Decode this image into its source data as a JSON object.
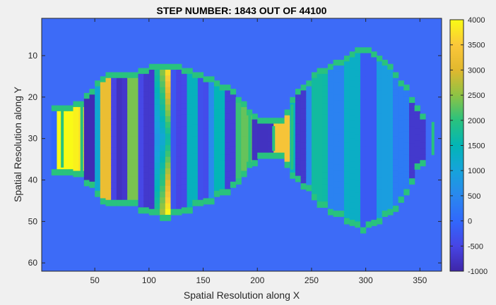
{
  "chart_data": {
    "type": "heatmap",
    "title": "STEP NUMBER: 1843 OUT OF 44100",
    "xlabel": "Spatial Resolution along X",
    "ylabel": "Spatial Resolution along Y",
    "xlim": [
      1,
      370
    ],
    "ylim": [
      1,
      62
    ],
    "y_direction": "reversed",
    "xticks": [
      50,
      100,
      150,
      200,
      250,
      300,
      350
    ],
    "yticks": [
      10,
      20,
      30,
      40,
      50,
      60
    ],
    "colormap": "parula",
    "clim": [
      -1000,
      4000
    ],
    "colorbar_ticks": [
      -1000,
      -500,
      0,
      500,
      1000,
      1500,
      2000,
      2500,
      3000,
      3500,
      4000
    ],
    "colorbar_ticks_display": [
      "-1000",
      "-500",
      "0",
      "500",
      "1000",
      "1500",
      "2000",
      "2500",
      "3000",
      "3500",
      "4000"
    ],
    "colorbar_location": "right",
    "background_value": 0,
    "boundary_value": 2000,
    "grid": false,
    "chamber_profile": {
      "x": [
        10,
        20,
        30,
        38,
        48,
        58,
        70,
        85,
        100,
        115,
        130,
        145,
        160,
        175,
        185,
        195,
        205,
        215,
        225,
        235,
        245,
        255,
        270,
        285,
        298,
        310,
        325,
        338,
        350,
        355
      ],
      "y_top": [
        23,
        23,
        23,
        22,
        19,
        16,
        15.5,
        15.5,
        14,
        13,
        14,
        15.5,
        17,
        19,
        22,
        25,
        26.5,
        27,
        26,
        20,
        18,
        15,
        13,
        11,
        9,
        11,
        14.5,
        19,
        25,
        26
      ],
      "y_bottom": [
        37,
        37,
        37,
        38,
        41,
        45,
        45,
        45,
        47,
        48,
        47,
        45,
        43.5,
        41.5,
        38.5,
        35,
        33,
        33,
        34,
        39,
        41,
        44,
        47,
        49,
        51,
        49.5,
        46.5,
        42,
        35,
        34
      ],
      "segment_boundaries_x": [
        20,
        38,
        193,
        215,
        232,
        362
      ]
    },
    "field_bands": [
      {
        "x": 25,
        "value": 4000
      },
      {
        "x": 33,
        "value": 3900
      },
      {
        "x": 45,
        "value": -900
      },
      {
        "x": 60,
        "value": 3200
      },
      {
        "x": 73,
        "value": -800
      },
      {
        "x": 85,
        "value": 2400
      },
      {
        "x": 98,
        "value": -700
      },
      {
        "x": 112,
        "value": 1200
      },
      {
        "x": 115,
        "value": 2800
      },
      {
        "x": 128,
        "value": -500
      },
      {
        "x": 140,
        "value": 1400
      },
      {
        "x": 152,
        "value": -400
      },
      {
        "x": 163,
        "value": 1500
      },
      {
        "x": 175,
        "value": -600
      },
      {
        "x": 188,
        "value": 2300
      },
      {
        "x": 203,
        "value": -800
      },
      {
        "x": 225,
        "value": 3400
      },
      {
        "x": 240,
        "value": -700
      },
      {
        "x": 255,
        "value": 1700
      },
      {
        "x": 272,
        "value": 400
      },
      {
        "x": 288,
        "value": 1300
      },
      {
        "x": 303,
        "value": -200
      },
      {
        "x": 318,
        "value": 900
      },
      {
        "x": 332,
        "value": 300
      },
      {
        "x": 347,
        "value": -700
      }
    ]
  }
}
